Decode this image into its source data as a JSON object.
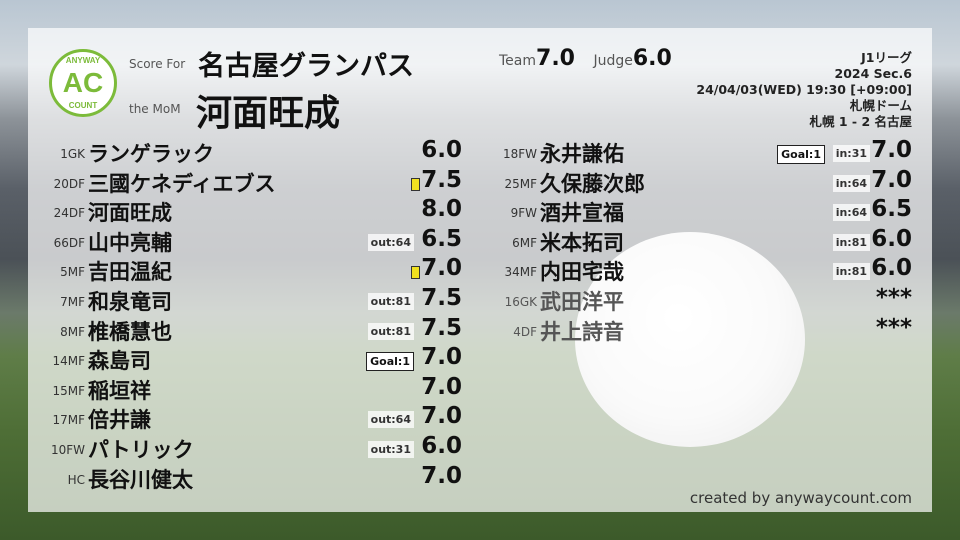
{
  "header": {
    "logo_top": "ANYWAY",
    "logo_mid": "AC",
    "logo_bottom": "COUNT",
    "score_for_label": "Score For",
    "team": "名古屋グランパス",
    "mom_label": "the MoM",
    "mom": "河面旺成",
    "team_label": "Team",
    "team_score": "7.0",
    "judge_label": "Judge",
    "judge_score": "6.0"
  },
  "match": {
    "league": "J1リーグ",
    "section": "2024 Sec.6",
    "datetime": "24/04/03(WED) 19:30 [+09:00]",
    "venue": "札幌ドーム",
    "result": "札幌 1 - 2 名古屋"
  },
  "left_players": [
    {
      "num": "1GK",
      "name": "ランゲラック",
      "score": "6.0"
    },
    {
      "num": "20DF",
      "name": "三國ケネディエブス",
      "score": "7.5",
      "yellow_card": true
    },
    {
      "num": "24DF",
      "name": "河面旺成",
      "score": "8.0"
    },
    {
      "num": "66DF",
      "name": "山中亮輔",
      "score": "6.5",
      "sub": "out:64"
    },
    {
      "num": "5MF",
      "name": "吉田温紀",
      "score": "7.0",
      "yellow_card": true
    },
    {
      "num": "7MF",
      "name": "和泉竜司",
      "score": "7.5",
      "sub": "out:81"
    },
    {
      "num": "8MF",
      "name": "椎橋慧也",
      "score": "7.5",
      "sub": "out:81"
    },
    {
      "num": "14MF",
      "name": "森島司",
      "score": "7.0",
      "goal": "Goal:1"
    },
    {
      "num": "15MF",
      "name": "稲垣祥",
      "score": "7.0"
    },
    {
      "num": "17MF",
      "name": "倍井謙",
      "score": "7.0",
      "sub": "out:64"
    },
    {
      "num": "10FW",
      "name": "パトリック",
      "score": "6.0",
      "sub": "out:31"
    },
    {
      "num": "HC",
      "name": "長谷川健太",
      "score": "7.0"
    }
  ],
  "right_players": [
    {
      "num": "18FW",
      "name": "永井謙佑",
      "score": "7.0",
      "sub": "in:31",
      "goal": "Goal:1"
    },
    {
      "num": "25MF",
      "name": "久保藤次郎",
      "score": "7.0",
      "sub": "in:64"
    },
    {
      "num": "9FW",
      "name": "酒井宣福",
      "score": "6.5",
      "sub": "in:64"
    },
    {
      "num": "6MF",
      "name": "米本拓司",
      "score": "6.0",
      "sub": "in:81"
    },
    {
      "num": "34MF",
      "name": "内田宅哉",
      "score": "6.0",
      "sub": "in:81"
    },
    {
      "num": "16GK",
      "name": "武田洋平",
      "score": "***",
      "bench": true
    },
    {
      "num": "4DF",
      "name": "井上詩音",
      "score": "***",
      "bench": true
    }
  ],
  "footer": "created by anywaycount.com",
  "colors": {
    "logo": "#7cbb3a",
    "card": "#f0e020"
  }
}
